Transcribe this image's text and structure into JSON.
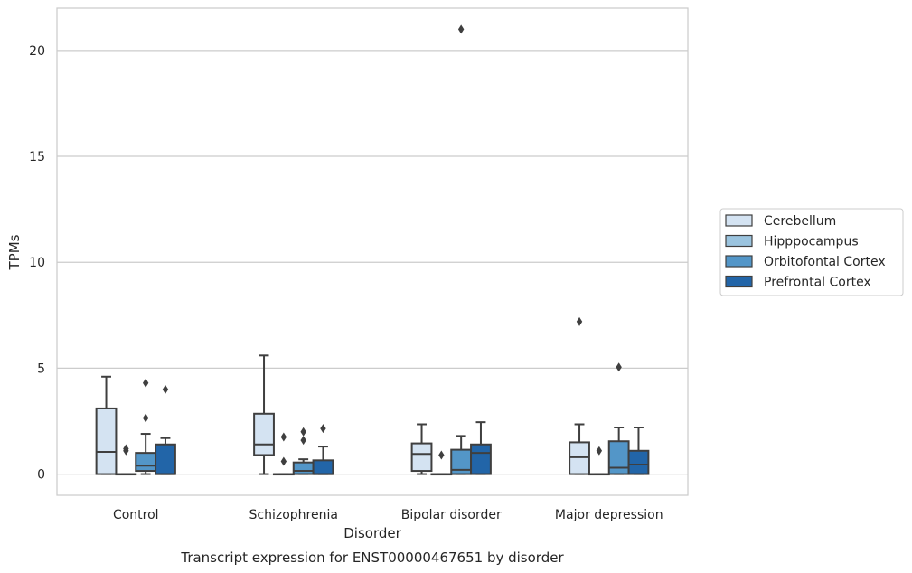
{
  "chart_data": {
    "type": "box",
    "title": "Transcript expression for ENST00000467651 by disorder",
    "xlabel": "Disorder",
    "ylabel": "TPMs",
    "ylim": [
      -1,
      22
    ],
    "yticks": [
      0,
      5,
      10,
      15,
      20
    ],
    "grid": true,
    "legend_position": "right",
    "categories": [
      "Control",
      "Schizophrenia",
      "Bipolar disorder",
      "Major depression"
    ],
    "series": [
      {
        "name": "Cerebellum",
        "color": "#d4e3f2",
        "boxes": [
          {
            "whislo": 0,
            "q1": 0,
            "med": 1.05,
            "q3": 3.1,
            "whishi": 4.6,
            "fliers": []
          },
          {
            "whislo": 0,
            "q1": 0.9,
            "med": 1.4,
            "q3": 2.85,
            "whishi": 5.6,
            "fliers": []
          },
          {
            "whislo": 0,
            "q1": 0.15,
            "med": 0.95,
            "q3": 1.45,
            "whishi": 2.35,
            "fliers": []
          },
          {
            "whislo": 0,
            "q1": 0,
            "med": 0.8,
            "q3": 1.5,
            "whishi": 2.35,
            "fliers": [
              7.2
            ]
          }
        ]
      },
      {
        "name": "Hipppocampus",
        "color": "#9bc4df",
        "boxes": [
          {
            "whislo": 0,
            "q1": 0,
            "med": 0,
            "q3": 0,
            "whishi": 0,
            "fliers": [
              1.1,
              1.2
            ]
          },
          {
            "whislo": 0,
            "q1": 0,
            "med": 0,
            "q3": 0,
            "whishi": 0,
            "fliers": [
              0.6,
              1.75
            ]
          },
          {
            "whislo": 0,
            "q1": 0,
            "med": 0,
            "q3": 0,
            "whishi": 0,
            "fliers": [
              0.9
            ]
          },
          {
            "whislo": 0,
            "q1": 0,
            "med": 0,
            "q3": 0,
            "whishi": 0,
            "fliers": [
              1.1
            ]
          }
        ]
      },
      {
        "name": "Orbitofontal Cortex",
        "color": "#5396c8",
        "boxes": [
          {
            "whislo": 0,
            "q1": 0.15,
            "med": 0.4,
            "q3": 1.0,
            "whishi": 1.9,
            "fliers": [
              2.65,
              4.3
            ]
          },
          {
            "whislo": 0,
            "q1": 0,
            "med": 0.15,
            "q3": 0.55,
            "whishi": 0.7,
            "fliers": [
              1.6,
              2.0
            ]
          },
          {
            "whislo": 0,
            "q1": 0,
            "med": 0.2,
            "q3": 1.15,
            "whishi": 1.8,
            "fliers": [
              21.0
            ]
          },
          {
            "whislo": 0,
            "q1": 0,
            "med": 0.3,
            "q3": 1.55,
            "whishi": 2.2,
            "fliers": [
              5.05
            ]
          }
        ]
      },
      {
        "name": "Prefrontal Cortex",
        "color": "#2265a8",
        "boxes": [
          {
            "whislo": 0,
            "q1": 0,
            "med": 0,
            "q3": 1.4,
            "whishi": 1.7,
            "fliers": [
              4.0
            ]
          },
          {
            "whislo": 0,
            "q1": 0,
            "med": 0,
            "q3": 0.65,
            "whishi": 1.3,
            "fliers": [
              2.15
            ]
          },
          {
            "whislo": 0,
            "q1": 0,
            "med": 1.0,
            "q3": 1.4,
            "whishi": 2.45,
            "fliers": []
          },
          {
            "whislo": 0,
            "q1": 0,
            "med": 0.45,
            "q3": 1.1,
            "whishi": 2.2,
            "fliers": []
          }
        ]
      }
    ]
  }
}
